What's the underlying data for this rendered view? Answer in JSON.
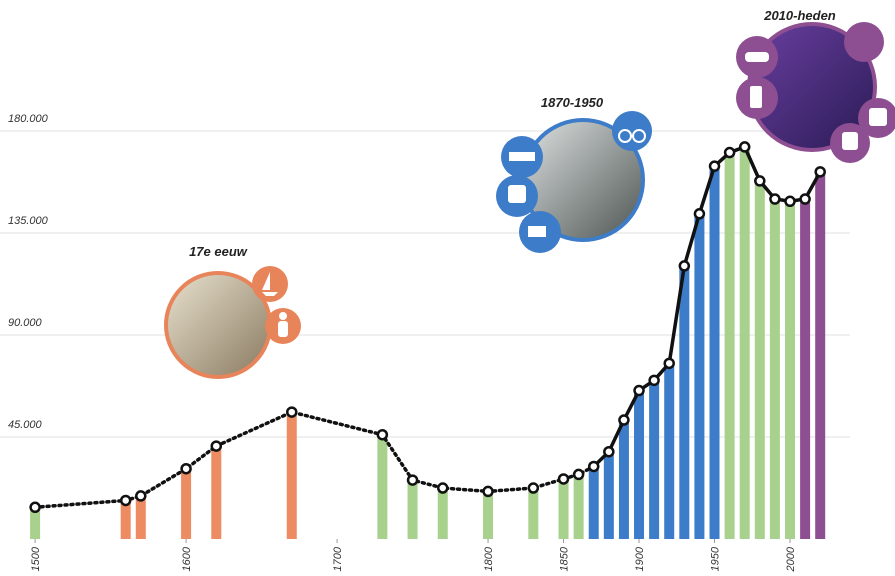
{
  "chart_data": {
    "type": "bar-line",
    "x": [
      1500,
      1560,
      1570,
      1600,
      1620,
      1670,
      1730,
      1750,
      1770,
      1800,
      1830,
      1850,
      1860,
      1870,
      1880,
      1890,
      1900,
      1910,
      1920,
      1930,
      1940,
      1950,
      1960,
      1970,
      1980,
      1990,
      2000,
      2010,
      2020
    ],
    "values": [
      14000,
      17000,
      19000,
      31000,
      41000,
      56000,
      46000,
      26000,
      22500,
      21000,
      22500,
      26500,
      28500,
      32000,
      38500,
      52500,
      65500,
      70000,
      77500,
      120500,
      143500,
      164500,
      170500,
      173000,
      158000,
      150000,
      149000,
      150000,
      162000
    ],
    "colors": [
      "#a9d18e",
      "#ed8b63",
      "#ed8b63",
      "#ed8b63",
      "#ed8b63",
      "#ed8b63",
      "#a9d18e",
      "#a9d18e",
      "#a9d18e",
      "#a9d18e",
      "#a9d18e",
      "#a9d18e",
      "#a9d18e",
      "#3d7cc9",
      "#3d7cc9",
      "#3d7cc9",
      "#3d7cc9",
      "#3d7cc9",
      "#3d7cc9",
      "#3d7cc9",
      "#3d7cc9",
      "#3d7cc9",
      "#a9d18e",
      "#a9d18e",
      "#a9d18e",
      "#a9d18e",
      "#a9d18e",
      "#8e4f92",
      "#8e4f92"
    ],
    "line_color": "#111111",
    "dashed_before": 1870,
    "xlim": [
      1490,
      2040
    ],
    "xticks": [
      1500,
      1600,
      1700,
      1800,
      1850,
      1900,
      1950,
      2000
    ],
    "ylim": [
      0,
      200000
    ],
    "yticks": [
      {
        "value": 45000,
        "label": "45.000"
      },
      {
        "value": 90000,
        "label": "90.000"
      },
      {
        "value": 135000,
        "label": "135.000"
      },
      {
        "value": 180000,
        "label": "180.000"
      }
    ],
    "grid": true,
    "annotations": [
      "17e eeuw",
      "1870-1950",
      "2010-heden"
    ]
  }
}
